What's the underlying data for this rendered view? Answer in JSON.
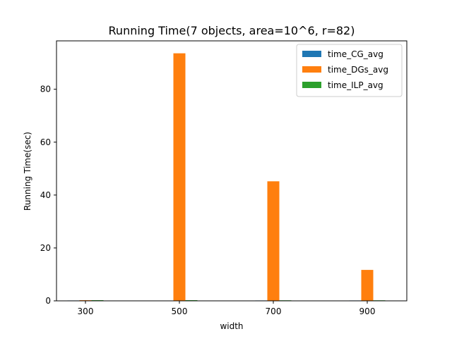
{
  "chart_data": {
    "type": "bar",
    "title": "Running Time(7 objects, area=10^6, r=82)",
    "xlabel": "width",
    "ylabel": "Running Time(sec)",
    "categories": [
      "300",
      "500",
      "700",
      "900"
    ],
    "series": [
      {
        "name": "time_CG_avg",
        "color": "#1f77b4",
        "values": [
          0.15,
          0.0,
          0.15,
          0.15
        ]
      },
      {
        "name": "time_DGs_avg",
        "color": "#ff7f0e",
        "values": [
          0.25,
          93.6,
          45.2,
          11.7
        ]
      },
      {
        "name": "time_ILP_avg",
        "color": "#2ca02c",
        "values": [
          0.25,
          0.25,
          0.2,
          0.2
        ]
      }
    ],
    "ylim": [
      0,
      98.3
    ],
    "yticks": [
      0,
      20,
      40,
      60,
      80
    ],
    "grid": false,
    "legend_position": "top-right"
  }
}
